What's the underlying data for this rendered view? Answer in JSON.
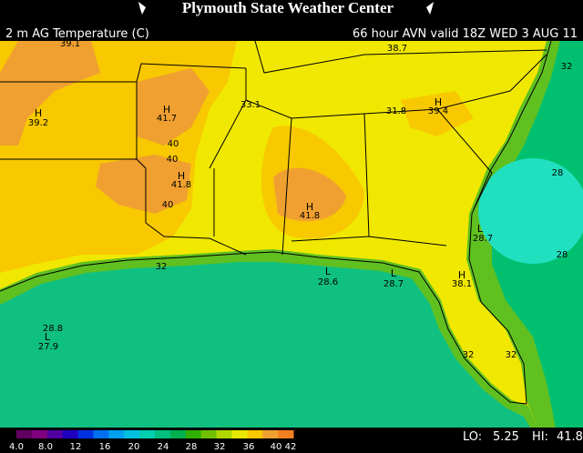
{
  "header": {
    "title": "Plymouth State Weather Center",
    "product": "2 m AG Temperature (C)",
    "valid": "66 hour AVN valid 18Z WED 3 AUG 11"
  },
  "map_labels": [
    "39.1",
    "38.7",
    "32",
    "H",
    "41.7",
    "33.1",
    "31.8",
    "H",
    "39.4",
    "H",
    "39.2",
    "40",
    "40",
    "H",
    "41.8",
    "40",
    "H",
    "41.8",
    "28",
    "L",
    "28.7",
    "28",
    "32",
    "L",
    "28.6",
    "L",
    "28.7",
    "H",
    "38.1",
    "28.8",
    "L",
    "27.9",
    "32",
    "32"
  ],
  "colorbar": {
    "ticks": [
      "4.0",
      "8.0",
      "12",
      "16",
      "20",
      "24",
      "28",
      "32",
      "36",
      "40",
      "42"
    ]
  },
  "footer": {
    "lo_label": "LO:",
    "lo": "5.25",
    "hi_label": "HI:",
    "hi": "41.8"
  }
}
